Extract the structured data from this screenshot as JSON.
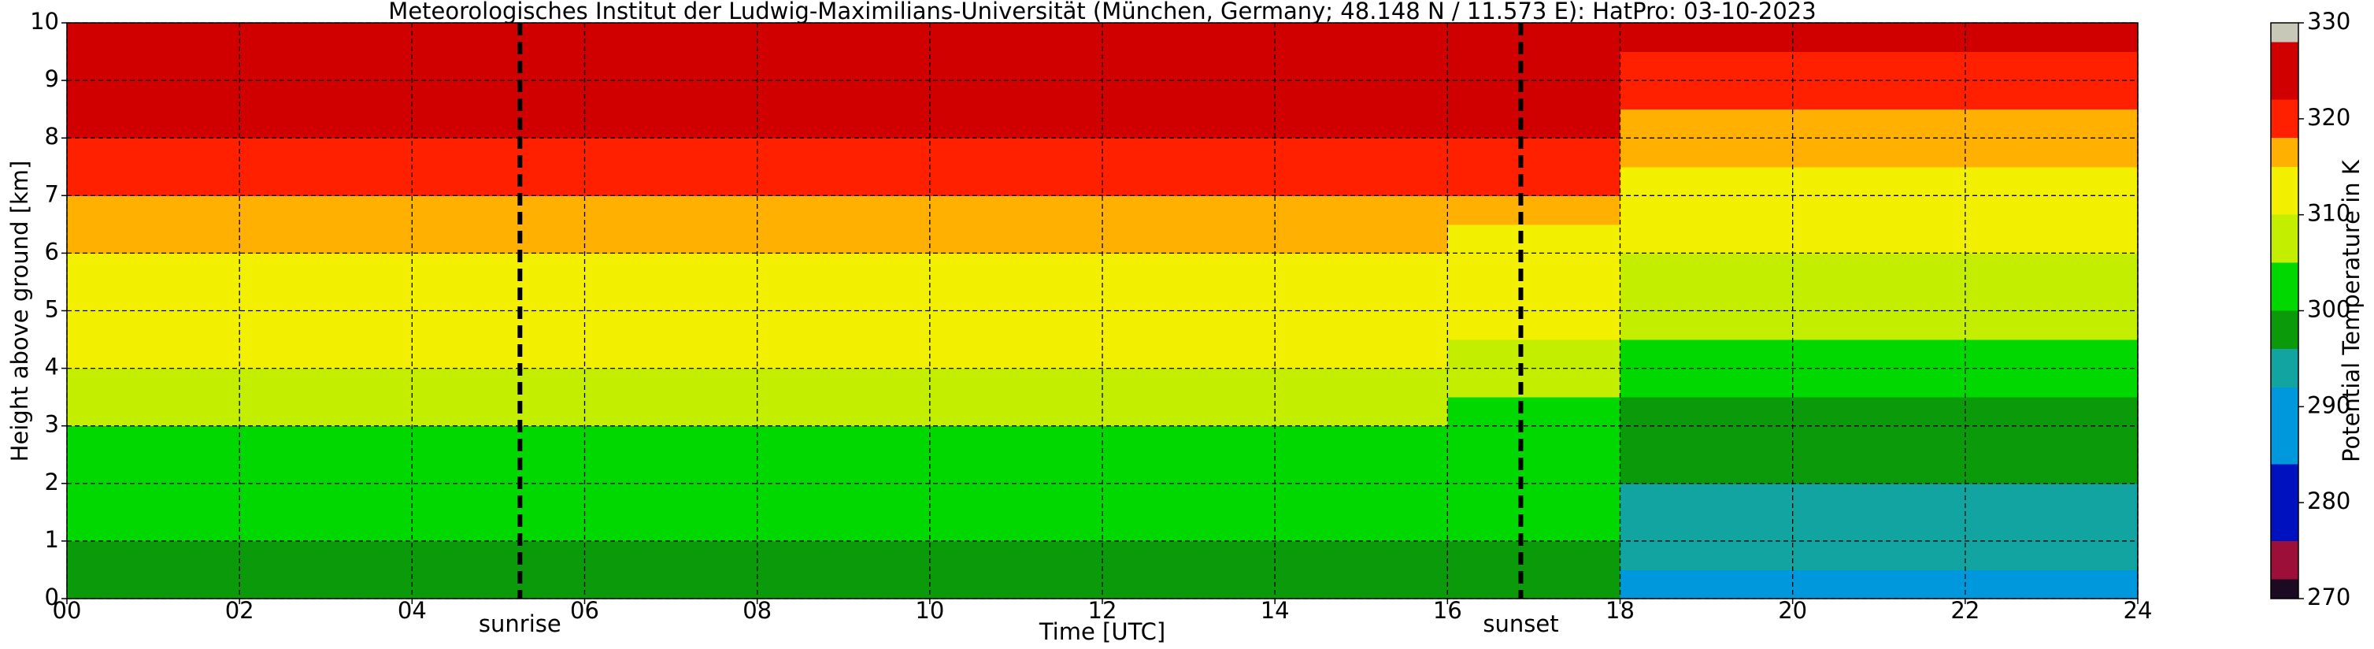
{
  "chart_data": {
    "type": "heatmap",
    "title": "Meteorologisches Institut der Ludwig-Maximilians-Universität (München, Germany; 48.148 N / 11.573 E):    HatPro: 03-10-2023",
    "xlabel": "Time [UTC]",
    "ylabel": "Height above ground [km]",
    "colorbar_label": "Potential Temperature in K",
    "x": [
      0,
      2,
      4,
      6,
      8,
      10,
      12,
      14,
      16,
      18,
      20,
      22,
      24
    ],
    "y": [
      0,
      0.5,
      1,
      1.5,
      2,
      2.5,
      3,
      3.5,
      4,
      4.5,
      5,
      5.5,
      6,
      6.5,
      7,
      7.5,
      8,
      8.5,
      9,
      9.5,
      10
    ],
    "z": [
      [
        297,
        297,
        297,
        297,
        297,
        297,
        297,
        297,
        297,
        291,
        291,
        291
      ],
      [
        299,
        299,
        299,
        299,
        299,
        299,
        299,
        299,
        298,
        292,
        292,
        292
      ],
      [
        301,
        301,
        301,
        301,
        301,
        301,
        301,
        301,
        300,
        293,
        293,
        293
      ],
      [
        302,
        302,
        302,
        302,
        302,
        302,
        302,
        302,
        301,
        294,
        294,
        294
      ],
      [
        303,
        303,
        303,
        303,
        303,
        303,
        303,
        303,
        302,
        297,
        297,
        297
      ],
      [
        303,
        303,
        303,
        303,
        303,
        303,
        303,
        303,
        303,
        298,
        298,
        298
      ],
      [
        305,
        305,
        305,
        305,
        305,
        305,
        305,
        305,
        304,
        299,
        299,
        299
      ],
      [
        307,
        307,
        307,
        307,
        307,
        307,
        307,
        307,
        306,
        301,
        301,
        301
      ],
      [
        310,
        310,
        310,
        310,
        310,
        310,
        310,
        310,
        308,
        303,
        303,
        303
      ],
      [
        311,
        311,
        311,
        311,
        311,
        311,
        311,
        311,
        310,
        305,
        305,
        305
      ],
      [
        312,
        312,
        312,
        312,
        312,
        312,
        312,
        312,
        311,
        307,
        307,
        307
      ],
      [
        313,
        313,
        313,
        313,
        313,
        313,
        313,
        313,
        312,
        309,
        309,
        309
      ],
      [
        315,
        315,
        315,
        315,
        315,
        315,
        315,
        315,
        314,
        311,
        311,
        311
      ],
      [
        317,
        317,
        317,
        317,
        317,
        317,
        317,
        317,
        316,
        312,
        312,
        312
      ],
      [
        320,
        320,
        320,
        320,
        320,
        320,
        320,
        320,
        319,
        313,
        313,
        313
      ],
      [
        321,
        321,
        321,
        321,
        321,
        321,
        321,
        321,
        320,
        315,
        315,
        315
      ],
      [
        323,
        323,
        323,
        323,
        323,
        323,
        323,
        323,
        322,
        317,
        317,
        317
      ],
      [
        323,
        323,
        323,
        323,
        323,
        323,
        323,
        323,
        323,
        319,
        319,
        319
      ],
      [
        324,
        324,
        324,
        324,
        324,
        324,
        324,
        324,
        324,
        321,
        321,
        321
      ],
      [
        324,
        324,
        324,
        324,
        324,
        324,
        324,
        324,
        324,
        322,
        322,
        322
      ]
    ],
    "xlim": [
      0,
      24
    ],
    "ylim": [
      0,
      10
    ],
    "xticks": [
      {
        "value": 0,
        "label": "00"
      },
      {
        "value": 2,
        "label": "02"
      },
      {
        "value": 4,
        "label": "04"
      },
      {
        "value": 6,
        "label": "06"
      },
      {
        "value": 8,
        "label": "08"
      },
      10,
      12,
      14,
      16,
      18,
      20,
      22,
      24
    ],
    "yticks": [
      0,
      1,
      2,
      3,
      4,
      5,
      6,
      7,
      8,
      9,
      10
    ],
    "grid": true,
    "colorbar": {
      "bounds": [
        270,
        272,
        276,
        284,
        292,
        296,
        300,
        305,
        310,
        315,
        318,
        322,
        328,
        330
      ],
      "colors": [
        "#1c0a22",
        "#9c0f38",
        "#0012c0",
        "#0098dc",
        "#12a4a0",
        "#0a9a0a",
        "#00d800",
        "#c4ee00",
        "#f2f000",
        "#ffb000",
        "#ff2000",
        "#d00000",
        "#c8c8b8"
      ],
      "lim": [
        270,
        330
      ],
      "ticks": [
        270,
        280,
        290,
        300,
        310,
        320,
        330
      ]
    },
    "annotations": [
      {
        "text": "sunrise",
        "x": 5.25
      },
      {
        "text": "sunset",
        "x": 16.85
      }
    ]
  }
}
